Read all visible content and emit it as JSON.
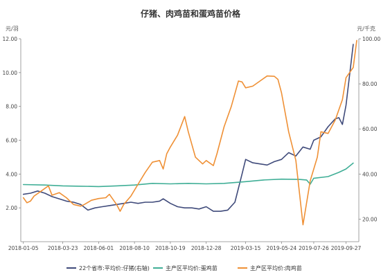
{
  "chart_data": {
    "type": "line",
    "title": "仔猪、肉鸡苗和蛋鸡苗价格",
    "y_left_unit": "元/羽",
    "y_right_unit": "元/千克",
    "ylim_left": [
      0,
      12
    ],
    "ylim_right": [
      10,
      100
    ],
    "y_left_ticks": [
      "2.00",
      "4.00",
      "6.00",
      "8.00",
      "10.00",
      "12.00"
    ],
    "y_left_tick_values": [
      2,
      4,
      6,
      8,
      10,
      12
    ],
    "y_right_ticks": [
      "20.00",
      "40.00",
      "60.00",
      "80.00",
      "100.00"
    ],
    "y_right_tick_values": [
      20,
      40,
      60,
      80,
      100
    ],
    "x_ticks": [
      "2018-01-05",
      "2018-03-23",
      "2018-06-01",
      "2018-08-10",
      "2018-10-19",
      "2018-12-28",
      "2019-03-15",
      "2019-05-24",
      "2019-07-26",
      "2019-09-27"
    ],
    "legend_position": "bottom",
    "grid": false,
    "series": [
      {
        "name": "22个省市:平均价:仔猪(右轴)",
        "axis": "right",
        "color": "#3f4a7a",
        "points": [
          [
            "2018-01-05",
            31.0
          ],
          [
            "2018-01-19",
            31.5
          ],
          [
            "2018-02-02",
            32.5
          ],
          [
            "2018-02-16",
            31.5
          ],
          [
            "2018-03-02",
            30.0
          ],
          [
            "2018-03-16",
            29.0
          ],
          [
            "2018-03-30",
            28.0
          ],
          [
            "2018-04-13",
            27.5
          ],
          [
            "2018-04-27",
            26.5
          ],
          [
            "2018-05-11",
            24.0
          ],
          [
            "2018-05-25",
            25.0
          ],
          [
            "2018-06-08",
            25.5
          ],
          [
            "2018-06-22",
            26.0
          ],
          [
            "2018-07-06",
            26.5
          ],
          [
            "2018-07-20",
            27.0
          ],
          [
            "2018-08-03",
            27.5
          ],
          [
            "2018-08-17",
            27.0
          ],
          [
            "2018-08-31",
            27.5
          ],
          [
            "2018-09-14",
            27.5
          ],
          [
            "2018-09-28",
            28.0
          ],
          [
            "2018-10-05",
            29.0
          ],
          [
            "2018-10-19",
            27.0
          ],
          [
            "2018-11-02",
            25.5
          ],
          [
            "2018-11-16",
            25.0
          ],
          [
            "2018-11-30",
            25.0
          ],
          [
            "2018-12-14",
            24.5
          ],
          [
            "2018-12-28",
            25.5
          ],
          [
            "2019-01-11",
            23.5
          ],
          [
            "2019-01-25",
            23.5
          ],
          [
            "2019-02-08",
            24.0
          ],
          [
            "2019-02-22",
            27.5
          ],
          [
            "2019-03-08",
            40.0
          ],
          [
            "2019-03-15",
            46.5
          ],
          [
            "2019-03-29",
            45.0
          ],
          [
            "2019-04-12",
            44.5
          ],
          [
            "2019-04-26",
            44.0
          ],
          [
            "2019-05-10",
            45.5
          ],
          [
            "2019-05-24",
            46.5
          ],
          [
            "2019-06-07",
            49.5
          ],
          [
            "2019-06-21",
            48.0
          ],
          [
            "2019-07-05",
            52.0
          ],
          [
            "2019-07-19",
            51.0
          ],
          [
            "2019-07-26",
            55.0
          ],
          [
            "2019-08-09",
            56.5
          ],
          [
            "2019-08-23",
            61.0
          ],
          [
            "2019-09-06",
            64.5
          ],
          [
            "2019-09-13",
            65.0
          ],
          [
            "2019-09-20",
            62.0
          ],
          [
            "2019-09-27",
            70.5
          ],
          [
            "2019-10-11",
            97.5
          ]
        ]
      },
      {
        "name": "主产区平均价:蛋鸡苗",
        "axis": "left",
        "color": "#3fae96",
        "points": [
          [
            "2018-01-05",
            3.38
          ],
          [
            "2018-02-16",
            3.35
          ],
          [
            "2018-03-23",
            3.3
          ],
          [
            "2018-04-27",
            3.28
          ],
          [
            "2018-06-01",
            3.26
          ],
          [
            "2018-07-06",
            3.3
          ],
          [
            "2018-08-10",
            3.35
          ],
          [
            "2018-09-14",
            3.45
          ],
          [
            "2018-10-19",
            3.42
          ],
          [
            "2018-11-23",
            3.45
          ],
          [
            "2018-12-28",
            3.42
          ],
          [
            "2019-02-01",
            3.45
          ],
          [
            "2019-03-15",
            3.55
          ],
          [
            "2019-04-19",
            3.65
          ],
          [
            "2019-05-24",
            3.7
          ],
          [
            "2019-06-28",
            3.68
          ],
          [
            "2019-07-12",
            3.65
          ],
          [
            "2019-07-19",
            3.4
          ],
          [
            "2019-07-26",
            3.75
          ],
          [
            "2019-08-23",
            3.85
          ],
          [
            "2019-09-13",
            4.1
          ],
          [
            "2019-09-27",
            4.3
          ],
          [
            "2019-10-11",
            4.65
          ]
        ]
      },
      {
        "name": "主产区平均价:肉鸡苗",
        "axis": "left",
        "color": "#ef9035",
        "points": [
          [
            "2018-01-05",
            2.6
          ],
          [
            "2018-01-12",
            2.3
          ],
          [
            "2018-01-19",
            2.4
          ],
          [
            "2018-01-26",
            2.7
          ],
          [
            "2018-02-09",
            3.0
          ],
          [
            "2018-02-23",
            3.3
          ],
          [
            "2018-03-02",
            2.75
          ],
          [
            "2018-03-16",
            2.9
          ],
          [
            "2018-03-30",
            2.6
          ],
          [
            "2018-04-13",
            2.2
          ],
          [
            "2018-04-27",
            2.1
          ],
          [
            "2018-05-04",
            2.2
          ],
          [
            "2018-05-18",
            2.45
          ],
          [
            "2018-06-01",
            2.55
          ],
          [
            "2018-06-15",
            2.6
          ],
          [
            "2018-06-22",
            2.8
          ],
          [
            "2018-07-06",
            2.2
          ],
          [
            "2018-07-13",
            1.8
          ],
          [
            "2018-07-20",
            2.2
          ],
          [
            "2018-08-03",
            2.7
          ],
          [
            "2018-08-17",
            3.4
          ],
          [
            "2018-08-31",
            4.1
          ],
          [
            "2018-09-14",
            4.7
          ],
          [
            "2018-09-28",
            4.8
          ],
          [
            "2018-10-05",
            4.3
          ],
          [
            "2018-10-12",
            5.2
          ],
          [
            "2018-10-19",
            5.6
          ],
          [
            "2018-11-02",
            6.3
          ],
          [
            "2018-11-16",
            7.4
          ],
          [
            "2018-11-23",
            6.5
          ],
          [
            "2018-12-07",
            5.0
          ],
          [
            "2018-12-21",
            4.6
          ],
          [
            "2018-12-28",
            4.8
          ],
          [
            "2019-01-11",
            4.5
          ],
          [
            "2019-01-18",
            5.2
          ],
          [
            "2019-02-01",
            6.8
          ],
          [
            "2019-02-15",
            8.0
          ],
          [
            "2019-03-01",
            9.5
          ],
          [
            "2019-03-08",
            9.45
          ],
          [
            "2019-03-15",
            9.1
          ],
          [
            "2019-03-29",
            9.2
          ],
          [
            "2019-04-12",
            9.5
          ],
          [
            "2019-04-26",
            9.8
          ],
          [
            "2019-05-10",
            9.78
          ],
          [
            "2019-05-17",
            9.6
          ],
          [
            "2019-05-24",
            8.8
          ],
          [
            "2019-06-07",
            6.5
          ],
          [
            "2019-06-21",
            4.8
          ],
          [
            "2019-07-05",
            1.0
          ],
          [
            "2019-07-19",
            3.6
          ],
          [
            "2019-08-02",
            5.0
          ],
          [
            "2019-08-09",
            6.5
          ],
          [
            "2019-08-23",
            6.4
          ],
          [
            "2019-09-06",
            7.2
          ],
          [
            "2019-09-20",
            8.4
          ],
          [
            "2019-09-27",
            9.7
          ],
          [
            "2019-10-04",
            10.0
          ],
          [
            "2019-10-11",
            10.3
          ],
          [
            "2019-10-18",
            11.9
          ]
        ]
      }
    ]
  }
}
